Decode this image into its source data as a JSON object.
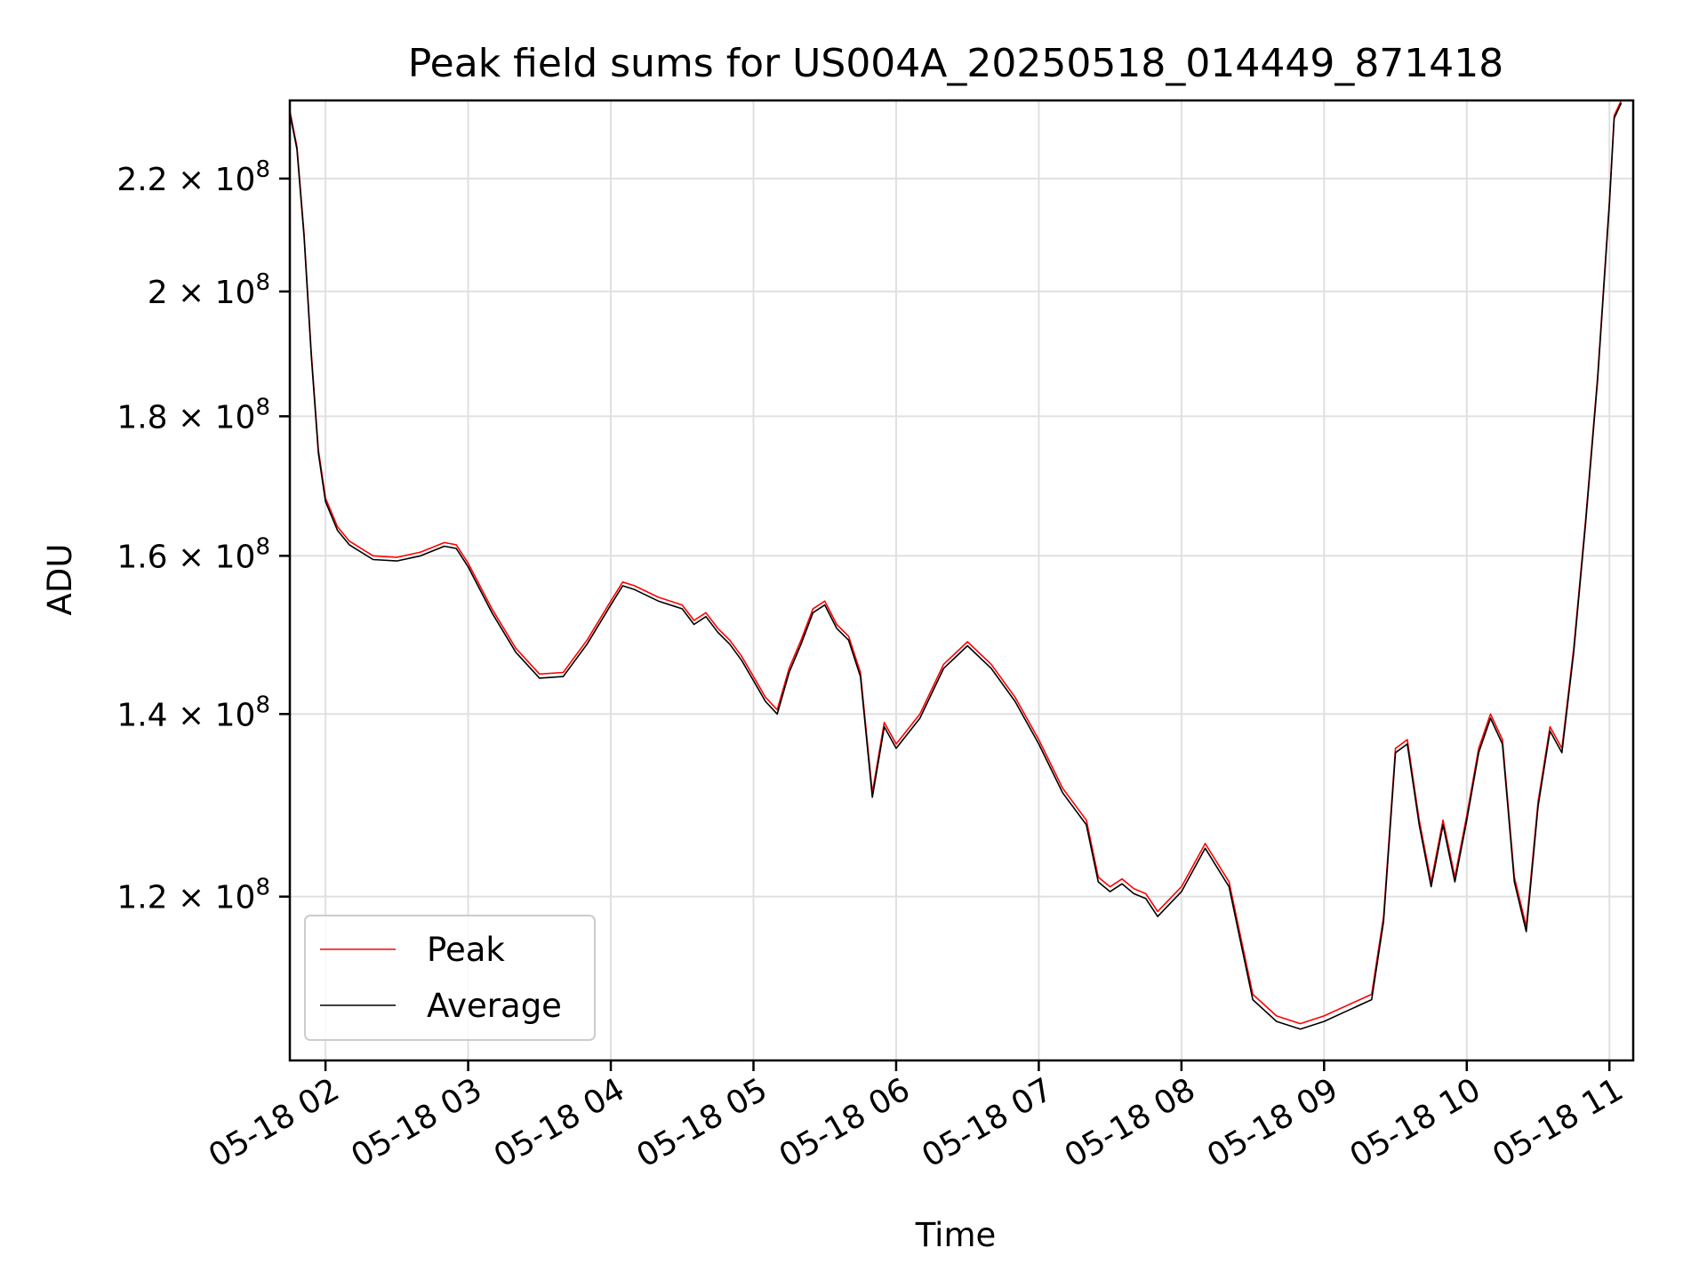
{
  "chart_data": {
    "type": "line",
    "title": "Peak field sums for US004A_20250518_014449_871418",
    "xlabel": "Time",
    "ylabel": "ADU",
    "x_ticks": [
      "05-18 02",
      "05-18 03",
      "05-18 04",
      "05-18 05",
      "05-18 06",
      "05-18 07",
      "05-18 08",
      "05-18 09",
      "05-18 10",
      "05-18 11"
    ],
    "y_scale": "log",
    "y_ticks": [
      {
        "value": 120000000,
        "mantissa": "1.2",
        "exponent": "8"
      },
      {
        "value": 140000000,
        "mantissa": "1.4",
        "exponent": "8"
      },
      {
        "value": 160000000,
        "mantissa": "1.6",
        "exponent": "8"
      },
      {
        "value": 180000000,
        "mantissa": "1.8",
        "exponent": "8"
      },
      {
        "value": 200000000,
        "mantissa": "2",
        "exponent": "8"
      },
      {
        "value": 220000000,
        "mantissa": "2.2",
        "exponent": "8"
      }
    ],
    "xlim": [
      "2025-05-18 01:45",
      "2025-05-18 11:10"
    ],
    "ylim": [
      104500000,
      235000000
    ],
    "grid": true,
    "legend_position": "lower-left",
    "series": [
      {
        "name": "Peak",
        "color": "#ff0000",
        "x": [
          "2025-05-18 01:45",
          "2025-05-18 01:48",
          "2025-05-18 01:51",
          "2025-05-18 01:54",
          "2025-05-18 01:57",
          "2025-05-18 02:00",
          "2025-05-18 02:05",
          "2025-05-18 02:10",
          "2025-05-18 02:20",
          "2025-05-18 02:30",
          "2025-05-18 02:40",
          "2025-05-18 02:50",
          "2025-05-18 02:55",
          "2025-05-18 03:00",
          "2025-05-18 03:10",
          "2025-05-18 03:20",
          "2025-05-18 03:30",
          "2025-05-18 03:40",
          "2025-05-18 03:50",
          "2025-05-18 04:00",
          "2025-05-18 04:05",
          "2025-05-18 04:10",
          "2025-05-18 04:20",
          "2025-05-18 04:30",
          "2025-05-18 04:35",
          "2025-05-18 04:40",
          "2025-05-18 04:45",
          "2025-05-18 04:50",
          "2025-05-18 04:55",
          "2025-05-18 05:00",
          "2025-05-18 05:05",
          "2025-05-18 05:10",
          "2025-05-18 05:15",
          "2025-05-18 05:20",
          "2025-05-18 05:25",
          "2025-05-18 05:30",
          "2025-05-18 05:35",
          "2025-05-18 05:40",
          "2025-05-18 05:45",
          "2025-05-18 05:50",
          "2025-05-18 05:55",
          "2025-05-18 06:00",
          "2025-05-18 06:10",
          "2025-05-18 06:20",
          "2025-05-18 06:30",
          "2025-05-18 06:40",
          "2025-05-18 06:50",
          "2025-05-18 07:00",
          "2025-05-18 07:10",
          "2025-05-18 07:20",
          "2025-05-18 07:25",
          "2025-05-18 07:30",
          "2025-05-18 07:35",
          "2025-05-18 07:40",
          "2025-05-18 07:45",
          "2025-05-18 07:50",
          "2025-05-18 08:00",
          "2025-05-18 08:10",
          "2025-05-18 08:20",
          "2025-05-18 08:30",
          "2025-05-18 08:40",
          "2025-05-18 08:50",
          "2025-05-18 09:00",
          "2025-05-18 09:10",
          "2025-05-18 09:20",
          "2025-05-18 09:25",
          "2025-05-18 09:30",
          "2025-05-18 09:35",
          "2025-05-18 09:40",
          "2025-05-18 09:45",
          "2025-05-18 09:50",
          "2025-05-18 09:55",
          "2025-05-18 10:00",
          "2025-05-18 10:05",
          "2025-05-18 10:10",
          "2025-05-18 10:15",
          "2025-05-18 10:20",
          "2025-05-18 10:25",
          "2025-05-18 10:30",
          "2025-05-18 10:35",
          "2025-05-18 10:40",
          "2025-05-18 10:45",
          "2025-05-18 10:50",
          "2025-05-18 10:55",
          "2025-05-18 11:00",
          "2025-05-18 11:02",
          "2025-05-18 11:05"
        ],
        "y": [
          233000000,
          226000000,
          210000000,
          190000000,
          175000000,
          168000000,
          164000000,
          162000000,
          160000000,
          159800000,
          160500000,
          161800000,
          161500000,
          159000000,
          153000000,
          148000000,
          144800000,
          145000000,
          149000000,
          154000000,
          156500000,
          156000000,
          154500000,
          153500000,
          151500000,
          152500000,
          150500000,
          149000000,
          147000000,
          144500000,
          142000000,
          140500000,
          145500000,
          149000000,
          153000000,
          154000000,
          151000000,
          149500000,
          145000000,
          131000000,
          139000000,
          136500000,
          140000000,
          146000000,
          148800000,
          146000000,
          142000000,
          137000000,
          131500000,
          128000000,
          122000000,
          121000000,
          121800000,
          120800000,
          120300000,
          118500000,
          121000000,
          125500000,
          121500000,
          110500000,
          108500000,
          107800000,
          108500000,
          109500000,
          110500000,
          118000000,
          136000000,
          137000000,
          128000000,
          121500000,
          128000000,
          122000000,
          128500000,
          136000000,
          140000000,
          137000000,
          122000000,
          117000000,
          130000000,
          138500000,
          136000000,
          148000000,
          165000000,
          186000000,
          216000000,
          232000000,
          235000000
        ]
      },
      {
        "name": "Average",
        "color": "#000000",
        "x": [
          "2025-05-18 01:45",
          "2025-05-18 01:48",
          "2025-05-18 01:51",
          "2025-05-18 01:54",
          "2025-05-18 01:57",
          "2025-05-18 02:00",
          "2025-05-18 02:05",
          "2025-05-18 02:10",
          "2025-05-18 02:20",
          "2025-05-18 02:30",
          "2025-05-18 02:40",
          "2025-05-18 02:50",
          "2025-05-18 02:55",
          "2025-05-18 03:00",
          "2025-05-18 03:10",
          "2025-05-18 03:20",
          "2025-05-18 03:30",
          "2025-05-18 03:40",
          "2025-05-18 03:50",
          "2025-05-18 04:00",
          "2025-05-18 04:05",
          "2025-05-18 04:10",
          "2025-05-18 04:20",
          "2025-05-18 04:30",
          "2025-05-18 04:35",
          "2025-05-18 04:40",
          "2025-05-18 04:45",
          "2025-05-18 04:50",
          "2025-05-18 04:55",
          "2025-05-18 05:00",
          "2025-05-18 05:05",
          "2025-05-18 05:10",
          "2025-05-18 05:15",
          "2025-05-18 05:20",
          "2025-05-18 05:25",
          "2025-05-18 05:30",
          "2025-05-18 05:35",
          "2025-05-18 05:40",
          "2025-05-18 05:45",
          "2025-05-18 05:50",
          "2025-05-18 05:55",
          "2025-05-18 06:00",
          "2025-05-18 06:10",
          "2025-05-18 06:20",
          "2025-05-18 06:30",
          "2025-05-18 06:40",
          "2025-05-18 06:50",
          "2025-05-18 07:00",
          "2025-05-18 07:10",
          "2025-05-18 07:20",
          "2025-05-18 07:25",
          "2025-05-18 07:30",
          "2025-05-18 07:35",
          "2025-05-18 07:40",
          "2025-05-18 07:45",
          "2025-05-18 07:50",
          "2025-05-18 08:00",
          "2025-05-18 08:10",
          "2025-05-18 08:20",
          "2025-05-18 08:30",
          "2025-05-18 08:40",
          "2025-05-18 08:50",
          "2025-05-18 09:00",
          "2025-05-18 09:10",
          "2025-05-18 09:20",
          "2025-05-18 09:25",
          "2025-05-18 09:30",
          "2025-05-18 09:35",
          "2025-05-18 09:40",
          "2025-05-18 09:45",
          "2025-05-18 09:50",
          "2025-05-18 09:55",
          "2025-05-18 10:00",
          "2025-05-18 10:05",
          "2025-05-18 10:10",
          "2025-05-18 10:15",
          "2025-05-18 10:20",
          "2025-05-18 10:25",
          "2025-05-18 10:30",
          "2025-05-18 10:35",
          "2025-05-18 10:40",
          "2025-05-18 10:45",
          "2025-05-18 10:50",
          "2025-05-18 10:55",
          "2025-05-18 11:00",
          "2025-05-18 11:02",
          "2025-05-18 11:05"
        ],
        "y": [
          232500000,
          225500000,
          209500000,
          189500000,
          174500000,
          167500000,
          163500000,
          161500000,
          159500000,
          159300000,
          160000000,
          161300000,
          161000000,
          158500000,
          152500000,
          147500000,
          144300000,
          144500000,
          148500000,
          153500000,
          156000000,
          155500000,
          154000000,
          153000000,
          151000000,
          152000000,
          150000000,
          148500000,
          146500000,
          144000000,
          141500000,
          140000000,
          145000000,
          148500000,
          152500000,
          153500000,
          150500000,
          149000000,
          144500000,
          130500000,
          138500000,
          136000000,
          139500000,
          145500000,
          148300000,
          145500000,
          141500000,
          136500000,
          131000000,
          127500000,
          121500000,
          120500000,
          121300000,
          120300000,
          119800000,
          118000000,
          120500000,
          125000000,
          121000000,
          110000000,
          108000000,
          107300000,
          108000000,
          109000000,
          110000000,
          117500000,
          135500000,
          136500000,
          127500000,
          121000000,
          127500000,
          121500000,
          128000000,
          135500000,
          139500000,
          136500000,
          121500000,
          116500000,
          129500000,
          138000000,
          135500000,
          147500000,
          164500000,
          185500000,
          215500000,
          231500000,
          234500000
        ]
      }
    ]
  }
}
